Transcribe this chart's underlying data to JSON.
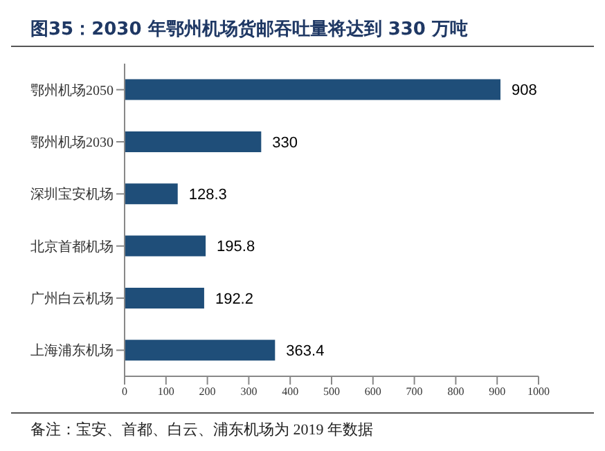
{
  "chart_data": {
    "type": "bar",
    "orientation": "horizontal",
    "title": "图35：2030 年鄂州机场货邮吞吐量将达到 330 万吨",
    "categories": [
      "鄂州机场2050",
      "鄂州机场2030",
      "深圳宝安机场",
      "北京首都机场",
      "广州白云机场",
      "上海浦东机场"
    ],
    "values": [
      908,
      330,
      128.3,
      195.8,
      192.2,
      363.4
    ],
    "color": "#1f4e79",
    "xlim": [
      0,
      1000
    ],
    "xticks": [
      0,
      100,
      200,
      300,
      400,
      500,
      600,
      700,
      800,
      900,
      1000
    ],
    "data_labels": true,
    "annotations": [
      "备注：宝安、首都、白云、浦东机场为 2019 年数据"
    ]
  }
}
